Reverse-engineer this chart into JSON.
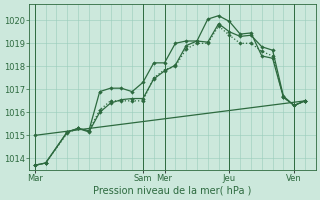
{
  "background_color": "#cce8dc",
  "grid_color": "#99ccbb",
  "line_color": "#2d6a3f",
  "title": "Pression niveau de la mer( hPa )",
  "ylim": [
    1013.5,
    1020.7
  ],
  "yticks": [
    1014,
    1015,
    1016,
    1017,
    1018,
    1019,
    1020
  ],
  "day_labels": [
    "Mar",
    "Sam",
    "Mer",
    "Jeu",
    "Ven"
  ],
  "day_positions": [
    0,
    10,
    12,
    18,
    24
  ],
  "major_vline_x": [
    0,
    10,
    12,
    18,
    24
  ],
  "xlim": [
    -0.5,
    26
  ],
  "series1_x": [
    0,
    1,
    3,
    4,
    5,
    6,
    7,
    8,
    9,
    10,
    11,
    12,
    13,
    14,
    15,
    16,
    17,
    18,
    19,
    20,
    21,
    22,
    23,
    24,
    25
  ],
  "series1_y": [
    1013.7,
    1013.8,
    1015.15,
    1015.3,
    1015.2,
    1016.9,
    1017.05,
    1017.05,
    1016.9,
    1017.3,
    1018.15,
    1018.15,
    1019.0,
    1019.1,
    1019.1,
    1020.05,
    1020.2,
    1019.95,
    1019.4,
    1019.45,
    1018.45,
    1018.35,
    1016.65,
    1016.3,
    1016.5
  ],
  "series2_x": [
    0,
    1,
    3,
    4,
    5,
    6,
    7,
    8,
    9,
    10,
    11,
    12,
    13,
    14,
    15,
    16,
    17,
    18,
    19,
    20,
    21,
    22,
    23,
    24,
    25
  ],
  "series2_y": [
    1013.7,
    1013.8,
    1015.15,
    1015.3,
    1015.15,
    1016.0,
    1016.4,
    1016.55,
    1016.6,
    1016.6,
    1017.45,
    1017.8,
    1018.05,
    1018.9,
    1019.1,
    1019.05,
    1019.85,
    1019.5,
    1019.3,
    1019.35,
    1018.85,
    1018.7,
    1016.7,
    1016.3,
    1016.5
  ],
  "series3_x": [
    0,
    1,
    3,
    4,
    5,
    6,
    7,
    8,
    9,
    10,
    11,
    12,
    13,
    14,
    15,
    16,
    17,
    18,
    19,
    20,
    21,
    22,
    23,
    24,
    25
  ],
  "series3_y": [
    1013.7,
    1013.8,
    1015.1,
    1015.3,
    1015.2,
    1016.1,
    1016.5,
    1016.5,
    1016.5,
    1016.5,
    1017.5,
    1017.85,
    1018.0,
    1018.75,
    1019.0,
    1019.0,
    1019.75,
    1019.35,
    1019.0,
    1019.0,
    1018.65,
    1018.45,
    1016.65,
    1016.3,
    1016.5
  ],
  "series4_x": [
    0,
    25
  ],
  "series4_y": [
    1015.0,
    1016.5
  ]
}
